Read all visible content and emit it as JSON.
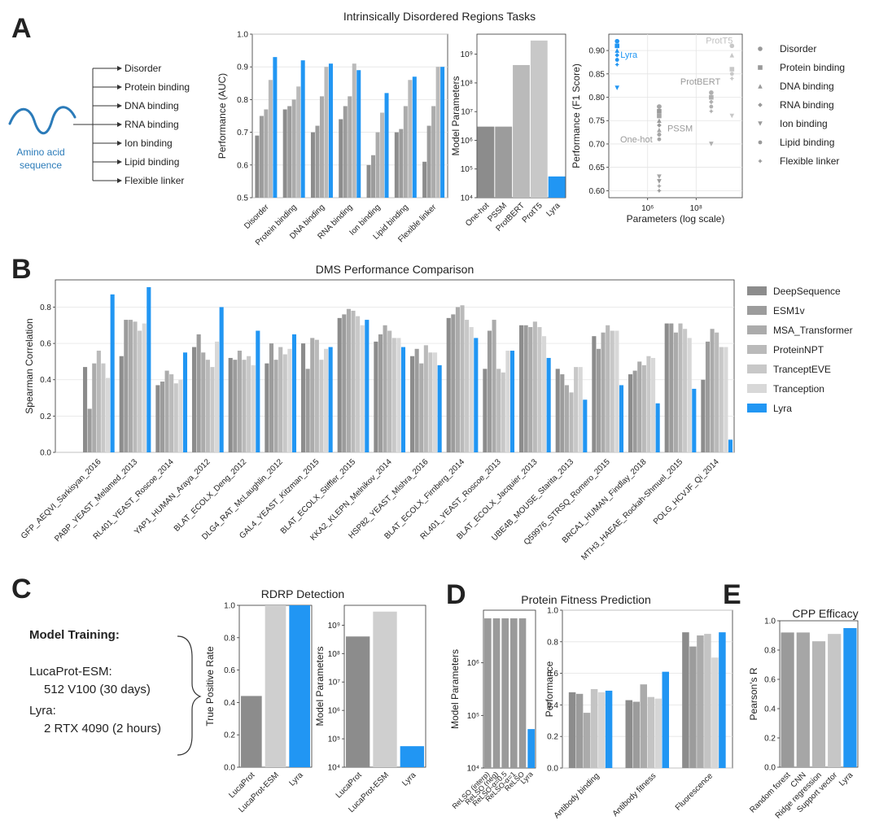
{
  "panels": {
    "A": {
      "letter": "A",
      "title": "Intrinsically Disordered Regions Tasks",
      "input_label_line1": "Amino acid",
      "input_label_line2": "sequence",
      "input_color": "#2b7bb9",
      "tasks": [
        "Disorder",
        "Protein binding",
        "DNA binding",
        "RNA binding",
        "Ion binding",
        "Lipid binding",
        "Flexible linker"
      ]
    },
    "B": {
      "letter": "B"
    },
    "C": {
      "letter": "C",
      "title": "RDRP Detection",
      "training_title": "Model Training:",
      "training": [
        {
          "name": "LucaProt-ESM:",
          "detail": "512 V100 (30 days)"
        },
        {
          "name": "Lyra:",
          "detail": "2 RTX 4090 (2 hours)"
        }
      ]
    },
    "D": {
      "letter": "D",
      "title": "Protein Fitness Prediction"
    },
    "E": {
      "letter": "E"
    }
  },
  "colors": {
    "lyra": "#2196f3",
    "greys": [
      "#8c8c8c",
      "#9c9c9c",
      "#ababab",
      "#bababa",
      "#c8c8c8",
      "#d8d8d8"
    ]
  },
  "chart_data": [
    {
      "id": "idr_auc",
      "type": "bar",
      "categories": [
        "Disorder",
        "Protein binding",
        "DNA binding",
        "RNA binding",
        "Ion binding",
        "Lipid binding",
        "Flexible linker"
      ],
      "series": [
        {
          "name": "One-hot",
          "values": [
            0.69,
            0.77,
            0.7,
            0.74,
            0.6,
            0.7,
            0.61
          ]
        },
        {
          "name": "PSSM",
          "values": [
            0.75,
            0.78,
            0.72,
            0.78,
            0.63,
            0.71,
            0.72
          ]
        },
        {
          "name": "ProtBERT",
          "values": [
            0.77,
            0.8,
            0.81,
            0.81,
            0.7,
            0.78,
            0.78
          ]
        },
        {
          "name": "ProtT5",
          "values": [
            0.86,
            0.84,
            0.9,
            0.91,
            0.76,
            0.86,
            0.9
          ]
        },
        {
          "name": "Lyra",
          "values": [
            0.93,
            0.92,
            0.91,
            0.89,
            0.82,
            0.87,
            0.9
          ]
        }
      ],
      "ylabel": "Performance (AUC)",
      "ylim": [
        0.5,
        1.0
      ],
      "yticks": [
        "0.5",
        "0.6",
        "0.7",
        "0.8",
        "0.9",
        "1.0"
      ],
      "grid": true
    },
    {
      "id": "idr_params",
      "type": "bar",
      "yscale": "log",
      "categories": [
        "One-hot",
        "PSSM",
        "ProtBERT",
        "ProtT5",
        "Lyra"
      ],
      "values": [
        3000000,
        3000000,
        420000000,
        3000000000,
        55000
      ],
      "ylabel": "Model Parameters",
      "ylim": [
        10000,
        5000000000
      ],
      "yticks": [
        "10⁴",
        "10⁵",
        "10⁶",
        "10⁷",
        "10⁸",
        "10⁹"
      ]
    },
    {
      "id": "idr_scatter",
      "type": "scatter",
      "xscale": "log",
      "xlabel": "Parameters (log scale)",
      "ylabel": "Performance (F1 Score)",
      "xlim": [
        25000,
        8000000000
      ],
      "ylim": [
        0.585,
        0.935
      ],
      "xticks": [
        "10⁶",
        "10⁸"
      ],
      "yticks": [
        "0.60",
        "0.65",
        "0.70",
        "0.75",
        "0.80",
        "0.85",
        "0.90"
      ],
      "legend": [
        "Disorder",
        "Protein binding",
        "DNA binding",
        "RNA binding",
        "Ion binding",
        "Lipid binding",
        "Flexible linker"
      ],
      "models": [
        {
          "name": "One-hot",
          "label": "One-hot",
          "x": 3000000,
          "values": [
            0.78,
            0.77,
            0.75,
            0.74,
            0.62,
            0.72,
            0.6
          ]
        },
        {
          "name": "PSSM",
          "label": "PSSM",
          "x": 3000000,
          "values": [
            0.78,
            0.76,
            0.73,
            0.72,
            0.63,
            0.71,
            0.61
          ]
        },
        {
          "name": "ProtBERT",
          "label": "ProtBERT",
          "x": 420000000,
          "values": [
            0.81,
            0.8,
            0.8,
            0.79,
            0.7,
            0.78,
            0.77
          ]
        },
        {
          "name": "ProtT5",
          "label": "ProtT5",
          "x": 3000000000,
          "values": [
            0.91,
            0.86,
            0.89,
            0.86,
            0.76,
            0.85,
            0.84
          ]
        },
        {
          "name": "Lyra",
          "label": "Lyra",
          "x": 55000,
          "values": [
            0.92,
            0.91,
            0.9,
            0.89,
            0.82,
            0.88,
            0.87
          ]
        }
      ]
    },
    {
      "id": "dms",
      "type": "bar",
      "title": "DMS Performance Comparison",
      "ylabel": "Spearman Correlation",
      "ylim": [
        0,
        0.95
      ],
      "yticks": [
        "0.0",
        "0.2",
        "0.4",
        "0.6",
        "0.8"
      ],
      "grid": true,
      "categories": [
        "GFP_AEQVI_Sarkisyan_2016",
        "PABP_YEAST_Melamed_2013",
        "RL401_YEAST_Roscoe_2014",
        "YAP1_HUMAN_Araya_2012",
        "BLAT_ECOLX_Deng_2012",
        "DLG4_RAT_McLaughlin_2012",
        "GAL4_YEAST_Kitzman_2015",
        "BLAT_ECOLX_Stiffler_2015",
        "KKA2_KLEPN_Melnikov_2014",
        "HSP82_YEAST_Mishra_2016",
        "BLAT_ECOLX_Firnberg_2014",
        "RL401_YEAST_Roscoe_2013",
        "BLAT_ECOLX_Jacquier_2013",
        "UBE4B_MOUSE_Starita_2013",
        "Q59976_STRSQ_Romero_2015",
        "BRCA1_HUMAN_Findlay_2018",
        "MTH3_HAEAE_Rockah-Shmuel_2015",
        "POLG_HCVJF_Qi_2014"
      ],
      "series": [
        {
          "name": "DeepSequence",
          "values": [
            0.47,
            0.53,
            0.37,
            0.58,
            0.52,
            0.49,
            0.6,
            0.74,
            0.61,
            0.53,
            0.74,
            0.46,
            0.7,
            0.46,
            0.64,
            0.43,
            0.71,
            0.4
          ]
        },
        {
          "name": "ESM1v",
          "values": [
            0.24,
            0.73,
            0.39,
            0.65,
            0.51,
            0.6,
            0.46,
            0.76,
            0.65,
            0.57,
            0.76,
            0.67,
            0.7,
            0.43,
            0.57,
            0.45,
            0.71,
            0.61
          ]
        },
        {
          "name": "MSA_Transformer",
          "values": [
            0.49,
            0.73,
            0.45,
            0.55,
            0.56,
            0.51,
            0.63,
            0.79,
            0.7,
            0.49,
            0.8,
            0.73,
            0.69,
            0.37,
            0.66,
            0.5,
            0.66,
            0.68
          ]
        },
        {
          "name": "ProteinNPT",
          "values": [
            0.56,
            0.72,
            0.43,
            0.51,
            0.51,
            0.58,
            0.62,
            0.78,
            0.67,
            0.59,
            0.81,
            0.46,
            0.72,
            0.33,
            0.7,
            0.48,
            0.71,
            0.66
          ]
        },
        {
          "name": "TranceptEVE",
          "values": [
            0.49,
            0.67,
            0.38,
            0.47,
            0.53,
            0.54,
            0.51,
            0.75,
            0.63,
            0.55,
            0.73,
            0.44,
            0.69,
            0.47,
            0.67,
            0.53,
            0.68,
            0.58
          ]
        },
        {
          "name": "Tranception",
          "values": [
            0.41,
            0.71,
            0.4,
            0.61,
            0.48,
            0.57,
            0.57,
            0.7,
            0.63,
            0.55,
            0.69,
            0.56,
            0.64,
            0.47,
            0.67,
            0.52,
            0.63,
            0.58
          ]
        },
        {
          "name": "Lyra",
          "values": [
            0.87,
            0.91,
            0.55,
            0.8,
            0.67,
            0.65,
            0.58,
            0.73,
            0.58,
            0.48,
            0.63,
            0.56,
            0.52,
            0.29,
            0.37,
            0.27,
            0.35,
            0.07
          ]
        }
      ],
      "legend": [
        "DeepSequence",
        "ESM1v",
        "MSA_Transformer",
        "ProteinNPT",
        "TranceptEVE",
        "Tranception",
        "Lyra"
      ]
    },
    {
      "id": "rdrp_tpr",
      "type": "bar",
      "categories": [
        "LucaProt",
        "LucaProt-ESM",
        "Lyra"
      ],
      "values": [
        0.44,
        1.0,
        1.0
      ],
      "ylabel": "True Positive Rate",
      "ylim": [
        0,
        1.0
      ],
      "yticks": [
        "0.0",
        "0.2",
        "0.4",
        "0.6",
        "0.8",
        "1.0"
      ]
    },
    {
      "id": "rdrp_params",
      "type": "bar",
      "yscale": "log",
      "categories": [
        "LucaProt",
        "LucaProt-ESM",
        "Lyra"
      ],
      "values": [
        400000000,
        3000000000,
        55000
      ],
      "ylabel": "Model Parameters",
      "ylim": [
        10000,
        5000000000
      ],
      "yticks": [
        "10⁴",
        "10⁵",
        "10⁶",
        "10⁷",
        "10⁸",
        "10⁹"
      ]
    },
    {
      "id": "fitness_params",
      "type": "bar",
      "yscale": "log",
      "categories": [
        "ReLSO (interp)",
        "ReLSO (neg)",
        "ReLSO-α=0.5",
        "ReLSO-α=1",
        "ReLSO",
        "Lyra"
      ],
      "values": [
        7000000,
        7000000,
        7000000,
        7000000,
        7000000,
        55000
      ],
      "ylabel": "Model Parameters",
      "ylim": [
        10000,
        10000000
      ],
      "yticks": [
        "10⁴",
        "10⁵",
        "10⁶"
      ]
    },
    {
      "id": "fitness_perf",
      "type": "bar",
      "categories": [
        "Antibody binding",
        "Antibody fitness",
        "Fluorescence"
      ],
      "series": [
        {
          "name": "ReLSO (interp)",
          "values": [
            0.48,
            0.43,
            0.86
          ]
        },
        {
          "name": "ReLSO (neg)",
          "values": [
            0.47,
            0.42,
            0.77
          ]
        },
        {
          "name": "ReLSO-α=0.5",
          "values": [
            0.35,
            0.53,
            0.84
          ]
        },
        {
          "name": "ReLSO-α=1",
          "values": [
            0.5,
            0.45,
            0.85
          ]
        },
        {
          "name": "ReLSO",
          "values": [
            0.48,
            0.44,
            0.7
          ]
        },
        {
          "name": "Lyra",
          "values": [
            0.49,
            0.61,
            0.86
          ]
        }
      ],
      "ylabel": "Performance",
      "ylim": [
        0,
        1.0
      ],
      "yticks": [
        "0.0",
        "0.2",
        "0.4",
        "0.6",
        "0.8",
        "1.0"
      ]
    },
    {
      "id": "cpp",
      "type": "bar",
      "title": "CPP Efficacy",
      "categories": [
        "Random forest",
        "CNN",
        "Ridge regression",
        "Support vector",
        "Lyra"
      ],
      "values": [
        0.92,
        0.92,
        0.86,
        0.91,
        0.95
      ],
      "ylabel": "Pearson's R",
      "ylim": [
        0,
        1.0
      ],
      "yticks": [
        "0.0",
        "0.2",
        "0.4",
        "0.6",
        "0.8",
        "1.0"
      ]
    }
  ]
}
